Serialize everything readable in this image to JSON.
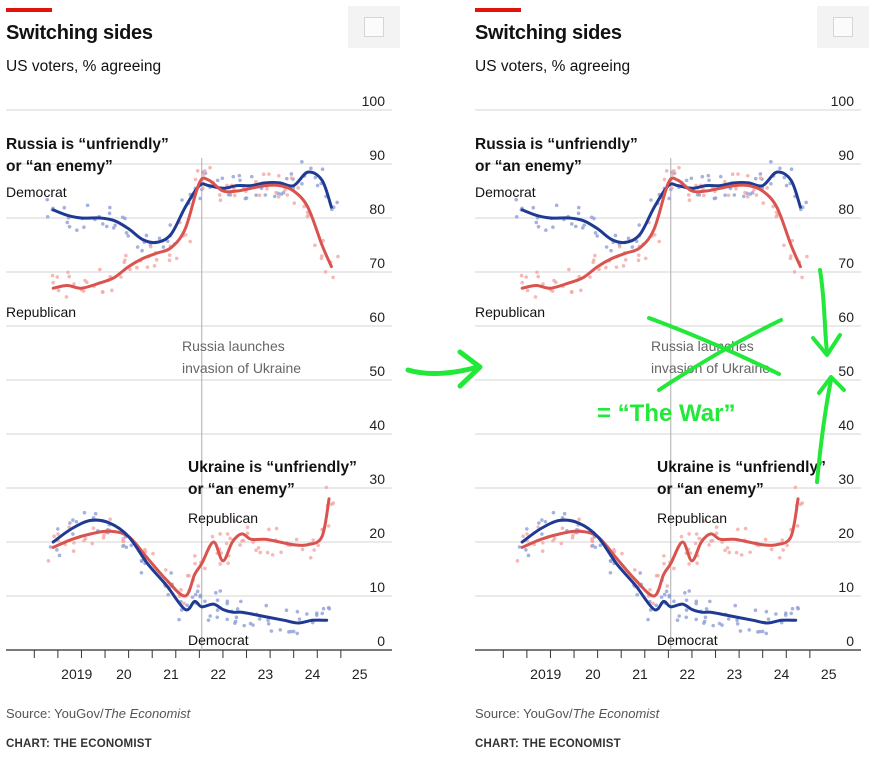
{
  "header": {
    "title": "Switching sides",
    "subtitle": "US voters, % agreeing"
  },
  "footer": {
    "source_prefix": "Source: YouGov/",
    "source_publication": "The Economist",
    "credit": "CHART: THE ECONOMIST"
  },
  "annotations": {
    "invasion": [
      "Russia launches",
      "invasion of Ukraine"
    ],
    "russia_label": [
      "Russia is “unfriendly”",
      "or “an enemy”"
    ],
    "ukraine_label": [
      "Ukraine is “unfriendly”",
      "or “an enemy”"
    ],
    "democrat_label": "Democrat",
    "republican_label": "Republican",
    "overlay_text": "= “The War”"
  },
  "colors": {
    "democrat": "#1f3a93",
    "republican": "#d9534f",
    "democrat_dots": "#8e9fd6",
    "republican_dots": "#f2a6a2",
    "marker": "#22e83a",
    "brand_red": "#e3120b"
  },
  "chart_data": {
    "type": "line",
    "title": "Switching sides",
    "subtitle": "US voters, % agreeing",
    "x_ticks": [
      "2019",
      "20",
      "21",
      "22",
      "23",
      "24",
      "25"
    ],
    "x_tick_values": [
      2019,
      2020,
      2021,
      2022,
      2023,
      2024,
      2025
    ],
    "xlim": [
      2018,
      2025.4
    ],
    "y_ticks": [
      0,
      10,
      20,
      30,
      40,
      50,
      60,
      70,
      80,
      90,
      100
    ],
    "ylim": [
      0,
      100
    ],
    "grid": true,
    "reference_line_x": 2022.15,
    "series": [
      {
        "name": "Democrat",
        "panel": "Russia",
        "x": [
          2019.0,
          2019.3,
          2019.6,
          2020.0,
          2020.3,
          2020.6,
          2020.9,
          2021.2,
          2021.5,
          2021.8,
          2022.1,
          2022.3,
          2022.6,
          2022.9,
          2023.2,
          2023.5,
          2023.8,
          2024.1,
          2024.4,
          2024.7,
          2024.9
        ],
        "values": [
          81.5,
          80.5,
          80,
          80,
          79.5,
          78,
          76,
          75.5,
          77,
          82,
          86,
          86,
          85.5,
          86,
          86,
          86.5,
          86.5,
          86,
          88.5,
          87,
          82
        ]
      },
      {
        "name": "Republican",
        "panel": "Russia",
        "x": [
          2019.0,
          2019.3,
          2019.6,
          2020.0,
          2020.3,
          2020.6,
          2020.9,
          2021.2,
          2021.5,
          2021.8,
          2022.1,
          2022.3,
          2022.6,
          2022.9,
          2023.2,
          2023.5,
          2023.8,
          2024.1,
          2024.4,
          2024.7,
          2024.9
        ],
        "values": [
          67,
          67.5,
          67,
          68,
          69,
          71,
          72.5,
          73.5,
          74.5,
          78,
          86.5,
          87,
          85,
          85,
          85.5,
          86,
          86,
          85,
          82,
          75,
          71
        ]
      },
      {
        "name": "Republican",
        "panel": "Ukraine",
        "x": [
          2019.0,
          2019.4,
          2019.8,
          2020.2,
          2020.6,
          2021.0,
          2021.4,
          2021.8,
          2022.0,
          2022.15,
          2022.4,
          2022.6,
          2022.8,
          2023.0,
          2023.2,
          2023.5,
          2023.8,
          2024.1,
          2024.4,
          2024.7,
          2024.85
        ],
        "values": [
          19,
          20.5,
          21.5,
          22,
          21,
          17,
          13,
          10,
          14,
          16,
          20,
          16.5,
          20,
          21.5,
          20.5,
          20.5,
          20,
          19.5,
          19.5,
          21,
          28
        ]
      },
      {
        "name": "Democrat",
        "panel": "Ukraine",
        "x": [
          2019.0,
          2019.4,
          2019.8,
          2020.2,
          2020.6,
          2021.0,
          2021.4,
          2021.8,
          2022.0,
          2022.15,
          2022.4,
          2022.6,
          2022.8,
          2023.0,
          2023.3,
          2023.6,
          2023.9,
          2024.2,
          2024.5,
          2024.8
        ],
        "values": [
          20,
          22.5,
          24,
          23.5,
          21,
          16,
          12,
          7.5,
          9,
          8,
          8.5,
          7.5,
          7,
          7,
          6.5,
          6,
          5.5,
          5,
          5.5,
          5.5
        ]
      }
    ]
  }
}
